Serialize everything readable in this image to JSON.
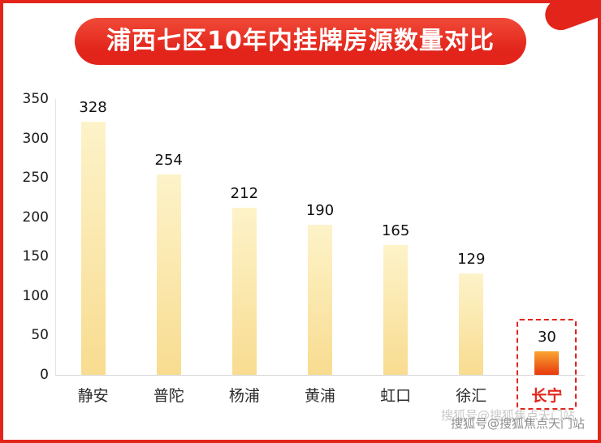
{
  "chart_data": {
    "type": "bar",
    "title": "浦西七区10年内挂牌房源数量对比",
    "categories": [
      "静安",
      "普陀",
      "杨浦",
      "黄浦",
      "虹口",
      "徐汇",
      "长宁"
    ],
    "values": [
      328,
      254,
      212,
      190,
      165,
      129,
      30
    ],
    "xlabel": "",
    "ylabel": "",
    "ylim": [
      0,
      350
    ],
    "yticks": [
      0,
      50,
      100,
      150,
      200,
      250,
      300,
      350
    ],
    "grid": false,
    "legend": "none",
    "highlight_category": "长宁",
    "highlight_style": "red dashed outline box around value, bar and label; bar filled red-orange gradient"
  },
  "colors": {
    "accent_red": "#e2241b",
    "bar_gradient_top": "#fdf3c9",
    "bar_gradient_bottom": "#f8dc90",
    "highlight_bar_top": "#f9a633",
    "highlight_bar_bottom": "#e8380d",
    "text_dark": "#111111",
    "watermark_gray": "#8f8f8f"
  },
  "watermark": "搜狐号@搜狐焦点天门站"
}
